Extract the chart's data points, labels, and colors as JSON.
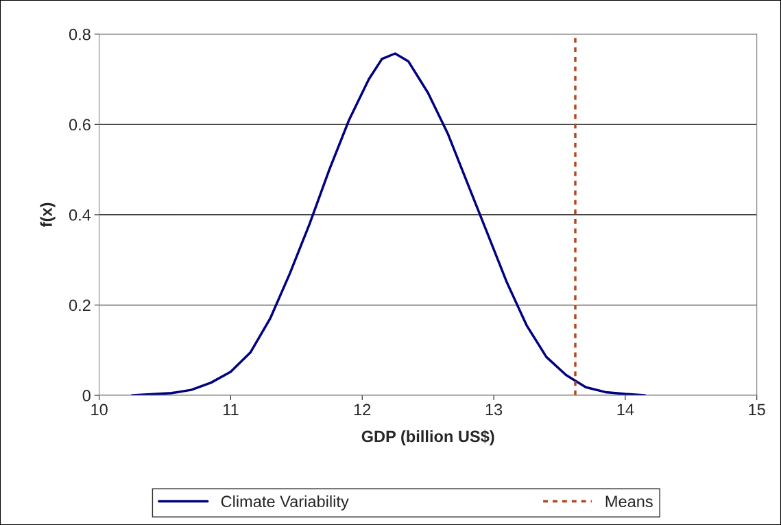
{
  "chart_data": {
    "type": "line",
    "xlabel": "GDP (billion US$)",
    "ylabel": "f(x)",
    "xlim": [
      10,
      15
    ],
    "xticks": [
      10,
      11,
      12,
      13,
      14,
      15
    ],
    "ylim": [
      0,
      0.8
    ],
    "yticks": [
      0,
      0.2,
      0.4,
      0.6,
      0.8
    ],
    "grid": "y",
    "legend": "bottom",
    "marker": "none",
    "line_style": "solid",
    "series": [
      {
        "name": "Climate Variability",
        "color": "#000080",
        "x": [
          10.25,
          10.55,
          10.7,
          10.85,
          11.0,
          11.15,
          11.3,
          11.45,
          11.6,
          11.75,
          11.9,
          12.05,
          12.15,
          12.25,
          12.35,
          12.5,
          12.65,
          12.8,
          12.95,
          13.1,
          13.25,
          13.4,
          13.55,
          13.7,
          13.85,
          14.0,
          14.15
        ],
        "values": [
          0,
          0.005,
          0.012,
          0.028,
          0.052,
          0.095,
          0.17,
          0.27,
          0.38,
          0.5,
          0.61,
          0.7,
          0.745,
          0.757,
          0.74,
          0.67,
          0.58,
          0.47,
          0.36,
          0.25,
          0.155,
          0.085,
          0.045,
          0.018,
          0.007,
          0.003,
          0
        ]
      }
    ],
    "ref_lines": [
      {
        "axis": "x",
        "value": 13.62,
        "label": "Means",
        "color": "#b5471f",
        "line_style": "dotted"
      }
    ]
  }
}
